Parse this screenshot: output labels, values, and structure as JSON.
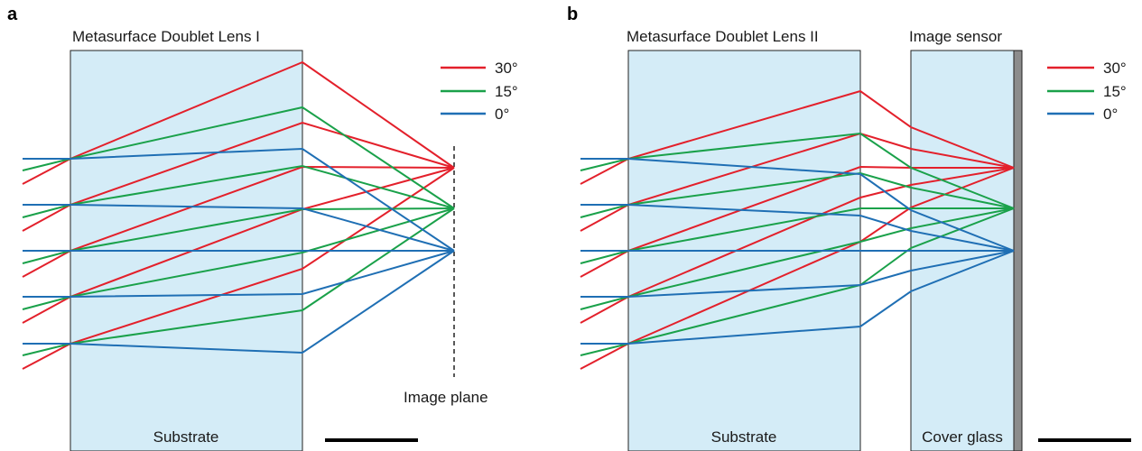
{
  "colors": {
    "ray_30": "#e3202b",
    "ray_15": "#1aa14a",
    "ray_0": "#1f6fb4",
    "substrate_fill": "#d4ecf7",
    "sensor_bar": "#8c8c8c",
    "outline": "#222222"
  },
  "panel_a": {
    "letter": "a",
    "lens_title": "Metasurface Doublet Lens I",
    "substrate_label": "Substrate",
    "image_plane_label": "Image plane",
    "legend": [
      {
        "label": "30°",
        "color_key": "ray_30"
      },
      {
        "label": "15°",
        "color_key": "ray_15"
      },
      {
        "label": "0°",
        "color_key": "ray_0"
      }
    ]
  },
  "panel_b": {
    "letter": "b",
    "lens_title": "Metasurface Doublet Lens II",
    "sensor_title": "Image sensor",
    "substrate_label": "Substrate",
    "cover_glass_label": "Cover glass",
    "legend": [
      {
        "label": "30°",
        "color_key": "ray_30"
      },
      {
        "label": "15°",
        "color_key": "ray_15"
      },
      {
        "label": "0°",
        "color_key": "ray_0"
      }
    ]
  }
}
